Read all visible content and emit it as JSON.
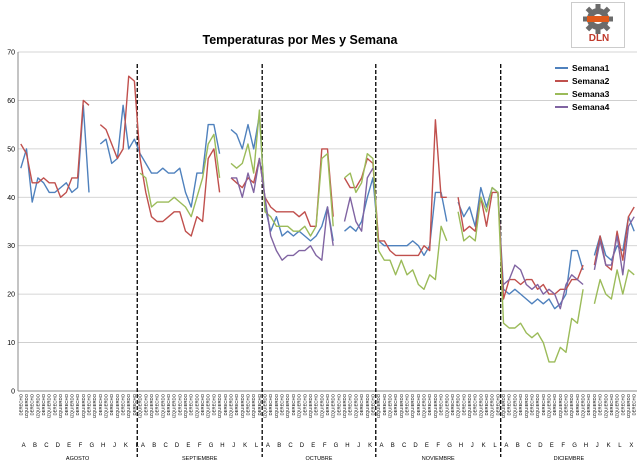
{
  "chart_data": {
    "type": "line",
    "title": "Temperaturas por Mes  y  Semana",
    "ylim": [
      0,
      70
    ],
    "yticks": [
      0,
      10,
      20,
      30,
      40,
      50,
      60,
      70
    ],
    "grid": true,
    "legend_position": "top-right",
    "letters": [
      "A",
      "B",
      "C",
      "D",
      "E",
      "F",
      "G",
      "H",
      "J",
      "K",
      "L",
      "X",
      "Y"
    ],
    "sublabels": [
      "DERECHO",
      "IZQUIERDO"
    ],
    "months": [
      "AGOSTO",
      "SEPTIEMBRE",
      "OCTUBRE",
      "NOVIEMBRE",
      "DICIEMBRE"
    ],
    "series": [
      {
        "name": "Semana1",
        "color": "#4f81bd",
        "values": [
          46.0,
          50.0,
          39.0,
          44.0,
          43.0,
          41.0,
          41.0,
          42.0,
          43.0,
          41.0,
          42.0,
          59.0,
          41.0,
          null,
          51.0,
          52.0,
          47.0,
          48.0,
          59.0,
          50.0,
          52.0,
          49.0,
          47.0,
          45.0,
          45.0,
          46.0,
          45.0,
          45.0,
          46.0,
          41.0,
          38.0,
          45.0,
          45.0,
          55.0,
          55.0,
          49.0,
          null,
          54.0,
          53.0,
          50.0,
          55.0,
          50.0,
          57.0,
          38.0,
          33.0,
          36.0,
          32.0,
          33.0,
          32.0,
          33.0,
          32.0,
          31.0,
          32.0,
          34.0,
          38.0,
          31.0,
          null,
          33.0,
          34.0,
          33.0,
          35.0,
          40.0,
          44.0,
          31.0,
          30.0,
          30.0,
          30.0,
          30.0,
          30.0,
          31.0,
          30.0,
          28.0,
          30.0,
          41.0,
          41.0,
          35.0,
          null,
          39.0,
          36.0,
          38.0,
          34.0,
          42.0,
          38.0,
          42.0,
          41.0,
          21.0,
          20.0,
          21.0,
          20.0,
          19.0,
          18.0,
          19.0,
          18.0,
          19.0,
          17.0,
          18.0,
          20.0,
          29.0,
          29.0,
          25.0,
          null,
          28.0,
          32.0,
          28.0,
          27.0,
          30.0,
          29.0,
          36.0,
          33.0
        ]
      },
      {
        "name": "Semana2",
        "color": "#c0504d",
        "values": [
          51.0,
          49.0,
          43.0,
          43.0,
          44.0,
          43.0,
          43.0,
          40.0,
          41.0,
          44.0,
          44.0,
          60.0,
          59.0,
          null,
          55.0,
          54.0,
          51.0,
          48.0,
          50.0,
          65.0,
          64.0,
          48.0,
          41.0,
          36.0,
          35.0,
          35.0,
          36.0,
          37.0,
          37.0,
          33.0,
          32.0,
          36.0,
          35.0,
          48.0,
          50.0,
          41.0,
          null,
          44.0,
          43.0,
          42.0,
          44.0,
          43.0,
          48.0,
          40.0,
          38.0,
          37.0,
          37.0,
          37.0,
          37.0,
          36.0,
          37.0,
          34.0,
          34.0,
          50.0,
          50.0,
          36.0,
          null,
          44.0,
          42.0,
          42.0,
          44.0,
          48.0,
          47.0,
          31.0,
          31.0,
          29.0,
          28.0,
          28.0,
          28.0,
          28.0,
          28.0,
          30.0,
          29.0,
          56.0,
          40.0,
          40.0,
          null,
          40.0,
          33.0,
          34.0,
          33.0,
          40.0,
          34.0,
          41.0,
          41.0,
          19.0,
          23.0,
          23.0,
          22.0,
          23.0,
          23.0,
          21.0,
          22.0,
          20.0,
          20.0,
          21.0,
          21.0,
          23.0,
          23.0,
          26.0,
          null,
          26.0,
          32.0,
          26.0,
          25.0,
          33.0,
          27.0,
          36.0,
          38.0
        ]
      },
      {
        "name": "Semana3",
        "color": "#9bbb59",
        "values": [
          null,
          null,
          null,
          null,
          null,
          null,
          null,
          null,
          null,
          null,
          null,
          null,
          null,
          null,
          null,
          null,
          null,
          null,
          null,
          null,
          null,
          45.0,
          44.0,
          38.0,
          39.0,
          39.0,
          39.0,
          40.0,
          39.0,
          38.0,
          36.0,
          40.0,
          44.0,
          51.0,
          53.0,
          44.0,
          null,
          47.0,
          46.0,
          47.0,
          51.0,
          45.0,
          58.0,
          37.0,
          36.0,
          34.0,
          34.0,
          34.0,
          33.0,
          33.0,
          34.0,
          32.0,
          34.0,
          48.0,
          49.0,
          34.0,
          null,
          44.0,
          45.0,
          41.0,
          43.0,
          49.0,
          48.0,
          29.0,
          27.0,
          27.0,
          24.0,
          27.0,
          24.0,
          25.0,
          22.0,
          21.0,
          24.0,
          23.0,
          34.0,
          31.0,
          null,
          37.0,
          31.0,
          32.0,
          31.0,
          40.0,
          37.0,
          42.0,
          41.0,
          14.0,
          13.0,
          13.0,
          14.0,
          12.0,
          11.0,
          12.0,
          10.0,
          6.0,
          6.0,
          9.0,
          8.0,
          15.0,
          14.0,
          21.0,
          null,
          18.0,
          23.0,
          20.0,
          19.0,
          25.0,
          20.0,
          25.0,
          24.0
        ]
      },
      {
        "name": "Semana4",
        "color": "#8064a2",
        "values": [
          null,
          null,
          null,
          null,
          null,
          null,
          null,
          null,
          null,
          null,
          null,
          null,
          null,
          null,
          null,
          null,
          null,
          null,
          null,
          null,
          null,
          null,
          null,
          null,
          null,
          null,
          null,
          null,
          null,
          null,
          null,
          null,
          null,
          null,
          null,
          null,
          null,
          44.0,
          44.0,
          40.0,
          45.0,
          41.0,
          48.0,
          40.0,
          32.0,
          29.0,
          27.0,
          28.0,
          28.0,
          29.0,
          29.0,
          30.0,
          28.0,
          27.0,
          38.0,
          30.0,
          null,
          35.0,
          40.0,
          35.0,
          33.0,
          44.0,
          46.0,
          null,
          null,
          null,
          null,
          null,
          null,
          null,
          null,
          null,
          null,
          null,
          null,
          null,
          null,
          null,
          null,
          null,
          null,
          null,
          null,
          null,
          null,
          22.0,
          23.0,
          26.0,
          25.0,
          22.0,
          21.0,
          22.0,
          20.0,
          21.0,
          20.0,
          17.0,
          22.0,
          24.0,
          23.0,
          22.0,
          null,
          25.0,
          31.0,
          26.0,
          26.0,
          32.0,
          24.0,
          34.0,
          36.0
        ]
      }
    ]
  },
  "logo": {
    "text": "DLN",
    "colors": {
      "gear": "#555555",
      "accent": "#e05a1c",
      "text": "#c0392b"
    }
  }
}
